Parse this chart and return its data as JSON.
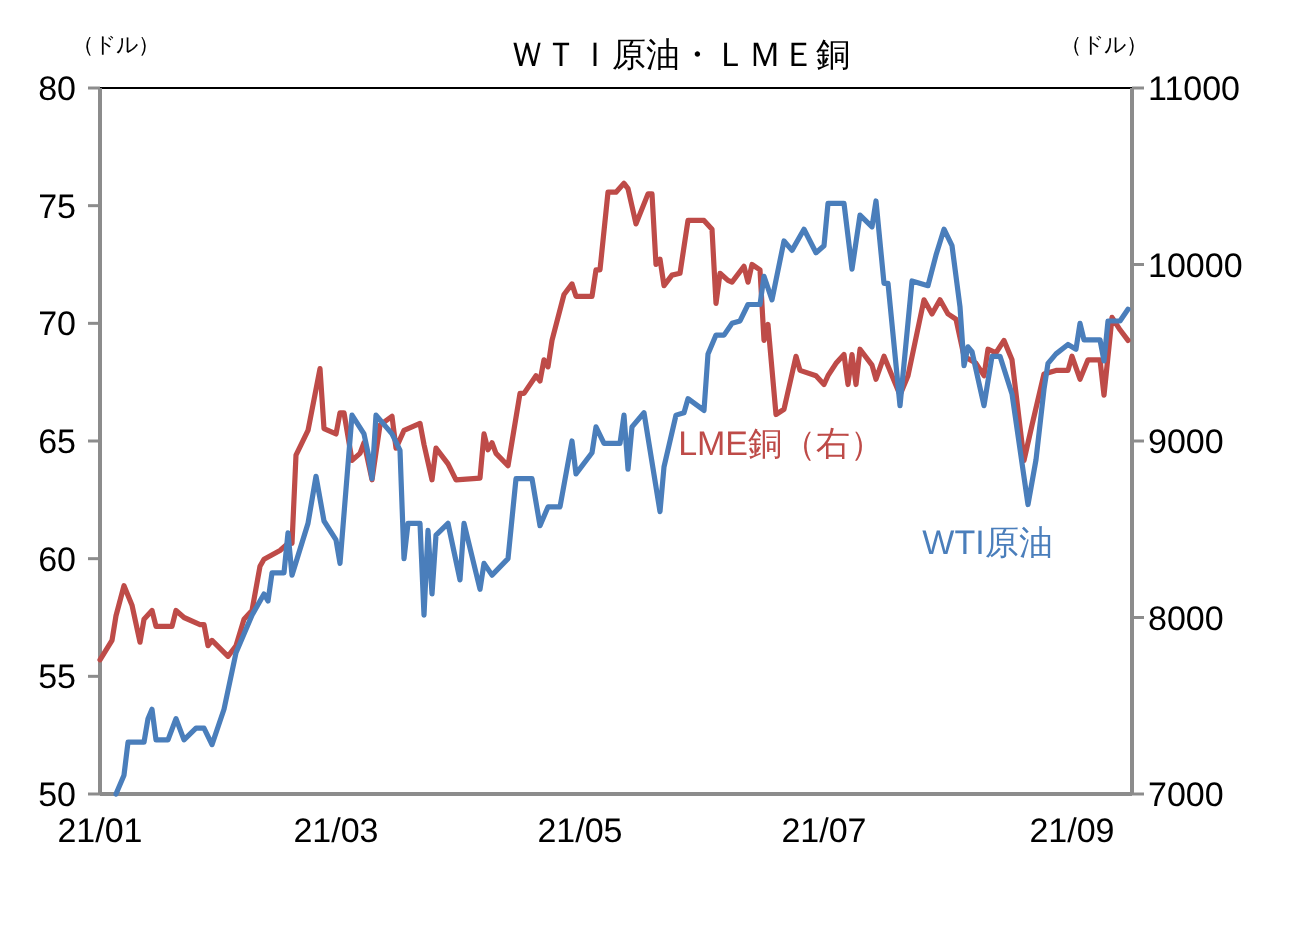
{
  "chart_data": {
    "type": "line",
    "title": "ＷＴＩ原油・ＬＭＥ銅",
    "ylabel": "（ドル）",
    "y2label": "（ドル）",
    "xlim": [
      "--01-01",
      "--09-16"
    ],
    "xticks": [
      {
        "value": "--01-01",
        "label": "21/01"
      },
      {
        "value": "--03-01",
        "label": "21/03"
      },
      {
        "value": "--05-01",
        "label": "21/05"
      },
      {
        "value": "--07-01",
        "label": "21/07"
      },
      {
        "value": "--09-01",
        "label": "21/09"
      }
    ],
    "ylim": [
      50,
      80
    ],
    "yticks": [
      50,
      55,
      60,
      65,
      70,
      75,
      80
    ],
    "y2lim": [
      7000,
      11000
    ],
    "y2ticks": [
      7000,
      8000,
      9000,
      10000,
      11000
    ],
    "series": [
      {
        "name": "LME銅（右）",
        "color": "#be4b48",
        "axis": "y2",
        "x": [
          "--01-01",
          "--01-04",
          "--01-05",
          "--01-07",
          "--01-09",
          "--01-11",
          "--01-12",
          "--01-14",
          "--01-15",
          "--01-19",
          "--01-20",
          "--01-22",
          "--01-26",
          "--01-27",
          "--01-28",
          "--01-29",
          "--02-02",
          "--02-04",
          "--02-06",
          "--02-08",
          "--02-10",
          "--02-11",
          "--02-15",
          "--02-17",
          "--02-18",
          "--02-19",
          "--02-22",
          "--02-25",
          "--02-26",
          "--03-01",
          "--03-02",
          "--03-03",
          "--03-05",
          "--03-07",
          "--03-08",
          "--03-10",
          "--03-12",
          "--03-15",
          "--03-16",
          "--03-18",
          "--03-22",
          "--03-23",
          "--03-25",
          "--03-26",
          "--03-29",
          "--03-31",
          "--04-06",
          "--04-07",
          "--04-08",
          "--04-09",
          "--04-10",
          "--04-13",
          "--04-16",
          "--04-17",
          "--04-20",
          "--04-21",
          "--04-22",
          "--04-23",
          "--04-24",
          "--04-27",
          "--04-29",
          "--04-30",
          "--05-04",
          "--05-05",
          "--05-06",
          "--05-08",
          "--05-10",
          "--05-12",
          "--05-13",
          "--05-15",
          "--05-18",
          "--05-19",
          "--05-20",
          "--05-21",
          "--05-22",
          "--05-24",
          "--05-26",
          "--05-28",
          "--06-01",
          "--06-03",
          "--06-04",
          "--06-05",
          "--06-07",
          "--06-08",
          "--06-11",
          "--06-12",
          "--06-13",
          "--06-15",
          "--06-16",
          "--06-17",
          "--06-19",
          "--06-21",
          "--06-24",
          "--06-25",
          "--06-29",
          "--07-01",
          "--07-02",
          "--07-04",
          "--07-06",
          "--07-07",
          "--07-08",
          "--07-09",
          "--07-10",
          "--07-13",
          "--07-14",
          "--07-16",
          "--07-20",
          "--07-22",
          "--07-26",
          "--07-28",
          "--07-30",
          "--08-01",
          "--08-03",
          "--08-05",
          "--08-08",
          "--08-10",
          "--08-11",
          "--08-13",
          "--08-15",
          "--08-17",
          "--08-20",
          "--08-22",
          "--08-25",
          "--08-28",
          "--08-31",
          "--09-01",
          "--09-03",
          "--09-05",
          "--09-08",
          "--09-09",
          "--09-11",
          "--09-13",
          "--09-15"
        ],
        "values": [
          7760,
          7870,
          8010,
          8180,
          8070,
          7860,
          7990,
          8040,
          7950,
          7950,
          8040,
          8000,
          7960,
          7960,
          7840,
          7870,
          7780,
          7840,
          7990,
          8040,
          8290,
          8330,
          8380,
          8420,
          8420,
          8920,
          9060,
          9410,
          9070,
          9040,
          9160,
          9160,
          8890,
          8930,
          8990,
          8780,
          9090,
          9140,
          8960,
          9060,
          9100,
          8980,
          8780,
          8960,
          8870,
          8780,
          8790,
          9040,
          8950,
          8990,
          8930,
          8860,
          9270,
          9270,
          9370,
          9340,
          9460,
          9420,
          9570,
          9830,
          9890,
          9820,
          9820,
          9970,
          9970,
          10410,
          10410,
          10460,
          10430,
          10230,
          10400,
          10400,
          10000,
          10030,
          9880,
          9940,
          9950,
          10250,
          10250,
          10200,
          9780,
          9950,
          9910,
          9900,
          9990,
          9900,
          10000,
          9970,
          9570,
          9660,
          9150,
          9180,
          9480,
          9400,
          9370,
          9320,
          9370,
          9440,
          9490,
          9320,
          9490,
          9320,
          9520,
          9430,
          9350,
          9480,
          9260,
          9370,
          9800,
          9720,
          9800,
          9720,
          9690,
          9480,
          9440,
          9370,
          9520,
          9500,
          9570,
          9460,
          8890,
          9090,
          9380,
          9400,
          9400,
          9480,
          9350,
          9460,
          9460,
          9260,
          9700,
          9630,
          9570
        ]
      },
      {
        "name": "WTI原油",
        "color": "#4a7ebb",
        "x": [
          "--01-05",
          "--01-07",
          "--01-08",
          "--01-12",
          "--01-13",
          "--01-14",
          "--01-15",
          "--01-18",
          "--01-20",
          "--01-22",
          "--01-25",
          "--01-27",
          "--01-29",
          "--02-01",
          "--02-04",
          "--02-08",
          "--02-11",
          "--02-12",
          "--02-13",
          "--02-16",
          "--02-17",
          "--02-18",
          "--02-22",
          "--02-24",
          "--02-26",
          "--03-01",
          "--03-02",
          "--03-05",
          "--03-08",
          "--03-09",
          "--03-10",
          "--03-11",
          "--03-15",
          "--03-17",
          "--03-18",
          "--03-19",
          "--03-22",
          "--03-23",
          "--03-24",
          "--03-25",
          "--03-26",
          "--03-29",
          "--04-01",
          "--04-02",
          "--04-06",
          "--04-07",
          "--04-09",
          "--04-13",
          "--04-15",
          "--04-19",
          "--04-21",
          "--04-23",
          "--04-26",
          "--04-29",
          "--04-30",
          "--05-04",
          "--05-05",
          "--05-07",
          "--05-11",
          "--05-12",
          "--05-13",
          "--05-14",
          "--05-17",
          "--05-21",
          "--05-22",
          "--05-25",
          "--05-27",
          "--05-28",
          "--06-01",
          "--06-02",
          "--06-04",
          "--06-06",
          "--06-08",
          "--06-10",
          "--06-12",
          "--06-15",
          "--06-16",
          "--06-18",
          "--06-21",
          "--06-23",
          "--06-26",
          "--06-29",
          "--07-01",
          "--07-02",
          "--07-06",
          "--07-08",
          "--07-10",
          "--07-13",
          "--07-14",
          "--07-16",
          "--07-17",
          "--07-20",
          "--07-23",
          "--07-27",
          "--07-29",
          "--07-31",
          "--08-02",
          "--08-04",
          "--08-05",
          "--08-06",
          "--08-07",
          "--08-10",
          "--08-12",
          "--08-14",
          "--08-17",
          "--08-21",
          "--08-23",
          "--08-25",
          "--08-26",
          "--08-28",
          "--08-31",
          "--09-02",
          "--09-03",
          "--09-04",
          "--09-08",
          "--09-09",
          "--09-10",
          "--09-13",
          "--09-15"
        ],
        "values": [
          50.0,
          50.8,
          52.2,
          52.2,
          53.2,
          53.6,
          52.3,
          52.3,
          53.2,
          52.3,
          52.8,
          52.8,
          52.1,
          53.6,
          56.0,
          57.6,
          58.5,
          58.2,
          59.4,
          59.4,
          61.1,
          59.3,
          61.5,
          63.5,
          61.6,
          60.8,
          59.8,
          66.1,
          65.3,
          64.5,
          63.4,
          66.1,
          65.3,
          64.6,
          60.0,
          61.5,
          61.5,
          57.6,
          61.2,
          58.5,
          61.0,
          61.5,
          59.1,
          61.5,
          58.7,
          59.8,
          59.3,
          60.0,
          63.4,
          63.4,
          61.4,
          62.2,
          62.2,
          65.0,
          63.6,
          64.5,
          65.6,
          64.9,
          64.9,
          66.1,
          63.8,
          65.6,
          66.2,
          62.0,
          63.9,
          66.1,
          66.2,
          66.8,
          66.3,
          68.7,
          69.5,
          69.5,
          70.0,
          70.1,
          70.8,
          70.8,
          72.0,
          71.0,
          73.5,
          73.1,
          74.0,
          73.0,
          73.3,
          75.1,
          75.1,
          72.3,
          74.6,
          74.1,
          75.2,
          71.7,
          71.7,
          66.5,
          71.8,
          71.6,
          72.9,
          74.0,
          73.3,
          70.7,
          68.2,
          69.0,
          68.8,
          66.5,
          68.6,
          68.6,
          67.0,
          62.3,
          64.2,
          67.2,
          68.3,
          68.7,
          69.1,
          68.9,
          70.0,
          69.3,
          69.3,
          68.4,
          70.1,
          70.1,
          70.6
        ]
      }
    ]
  }
}
